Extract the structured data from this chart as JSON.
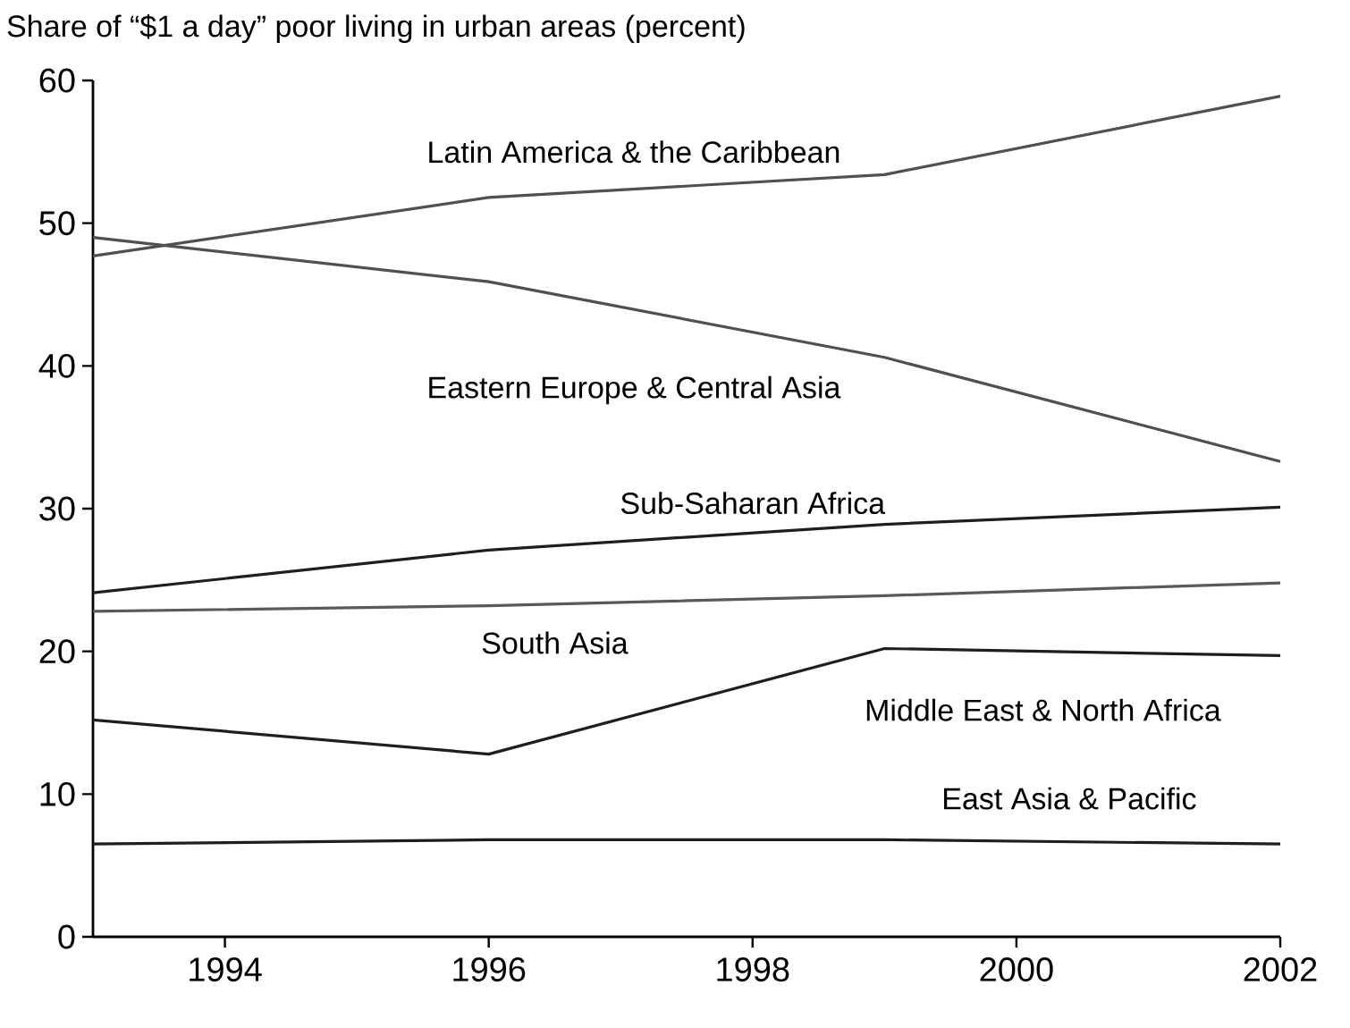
{
  "chart_data": {
    "type": "line",
    "title": "Share of “$1 a day” poor living in urban areas (percent)",
    "x": [
      1993,
      1996,
      1999,
      2002
    ],
    "series": [
      {
        "name": "Latin America & the Caribbean",
        "color": "#505050",
        "values": [
          47.7,
          51.8,
          53.4,
          58.9
        ]
      },
      {
        "name": "Eastern Europe & Central Asia",
        "color": "#505050",
        "values": [
          49.0,
          45.9,
          40.6,
          33.3
        ]
      },
      {
        "name": "Sub-Saharan Africa",
        "color": "#1e1e1e",
        "values": [
          24.1,
          27.1,
          28.9,
          30.1
        ]
      },
      {
        "name": "South Asia",
        "color": "#5a5a5a",
        "values": [
          22.8,
          23.2,
          23.9,
          24.8
        ]
      },
      {
        "name": "Middle East & North Africa",
        "color": "#1e1e1e",
        "values": [
          15.2,
          12.8,
          20.2,
          19.7
        ]
      },
      {
        "name": "East Asia & Pacific",
        "color": "#1e1e1e",
        "values": [
          6.5,
          6.8,
          6.8,
          6.5
        ]
      }
    ],
    "xlim": [
      1993,
      2002
    ],
    "ylim": [
      0,
      60
    ],
    "xticks": [
      1994,
      1996,
      1998,
      2000,
      2002
    ],
    "yticks": [
      0,
      10,
      20,
      30,
      40,
      50,
      60
    ]
  }
}
